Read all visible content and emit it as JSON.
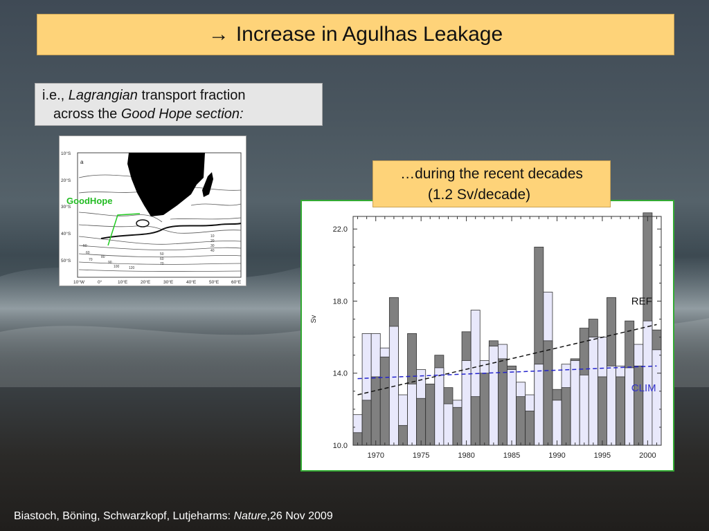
{
  "slide": {
    "title_arrow": "→",
    "title": "Increase in Agulhas Leakage",
    "subtitle": {
      "prefix": "i.e., ",
      "italic1": "Lagrangian",
      "mid": " transport fraction",
      "line2_prefix": "across the ",
      "italic2": "Good Hope section:"
    },
    "callout": {
      "line1": "…during the recent decades",
      "line2": "(1.2 Sv/decade)"
    },
    "footer": {
      "authors": "Biastoch, Böning, Schwarzkopf, Lutjeharms: ",
      "journal": "Nature",
      "date": ",26 Nov 2009"
    }
  },
  "map": {
    "panel_label": "a",
    "section_label": "GoodHope",
    "lat_labels": [
      "10°S",
      "20°S",
      "30°S",
      "40°S",
      "50°S"
    ],
    "lon_labels": [
      "10°W",
      "0°",
      "10°E",
      "20°E",
      "30°E",
      "40°E",
      "50°E",
      "60°E"
    ],
    "contour_labels": [
      "50",
      "60",
      "70",
      "80",
      "90",
      "100",
      "120",
      "10",
      "20",
      "30",
      "40",
      "50",
      "60",
      "70"
    ],
    "section_color": "#22cc22",
    "label_color": "#22bb22"
  },
  "chart_data": {
    "type": "bar",
    "ylabel": "Sv",
    "ylim": [
      10.0,
      22.7
    ],
    "yticks": [
      10.0,
      14.0,
      18.0,
      22.0
    ],
    "xlim": [
      1967.5,
      2001.5
    ],
    "xticks": [
      1970,
      1975,
      1980,
      1985,
      1990,
      1995,
      2000
    ],
    "years": [
      1968,
      1969,
      1970,
      1971,
      1972,
      1973,
      1974,
      1975,
      1976,
      1977,
      1978,
      1979,
      1980,
      1981,
      1982,
      1983,
      1984,
      1985,
      1986,
      1987,
      1988,
      1989,
      1990,
      1991,
      1992,
      1993,
      1994,
      1995,
      1996,
      1997,
      1998,
      1999,
      2000,
      2001
    ],
    "series": [
      {
        "name": "REF",
        "color": "#808080",
        "values": [
          10.7,
          12.5,
          13.8,
          14.9,
          18.2,
          11.1,
          16.2,
          12.6,
          13.4,
          15.0,
          13.2,
          12.1,
          16.3,
          12.7,
          14.0,
          15.8,
          14.8,
          14.4,
          12.7,
          11.9,
          21.0,
          15.8,
          13.1,
          13.2,
          14.8,
          16.5,
          17.0,
          13.8,
          18.2,
          13.8,
          16.9,
          14.4,
          22.9,
          16.4
        ]
      },
      {
        "name": "CLIM",
        "color": "#e8e8fb",
        "values": [
          11.7,
          16.2,
          16.2,
          15.4,
          16.6,
          12.8,
          13.4,
          14.2,
          13.4,
          14.3,
          12.3,
          12.5,
          14.7,
          17.5,
          14.7,
          15.5,
          15.6,
          14.2,
          13.5,
          12.8,
          14.5,
          18.5,
          12.5,
          14.5,
          14.7,
          13.9,
          16.0,
          16.0,
          14.4,
          14.4,
          14.3,
          15.6,
          16.9,
          15.3
        ]
      }
    ],
    "trend_lines": [
      {
        "name": "REF",
        "style": "dashed",
        "color": "#111111",
        "x": [
          1968,
          2001
        ],
        "y": [
          12.8,
          16.7
        ]
      },
      {
        "name": "CLIM",
        "style": "dashed",
        "color": "#2222cc",
        "x": [
          1968,
          2001
        ],
        "y": [
          13.7,
          14.4
        ]
      }
    ],
    "legend_labels": [
      {
        "text": "REF",
        "color": "#111111"
      },
      {
        "text": "CLIM",
        "color": "#3333cc"
      }
    ]
  }
}
